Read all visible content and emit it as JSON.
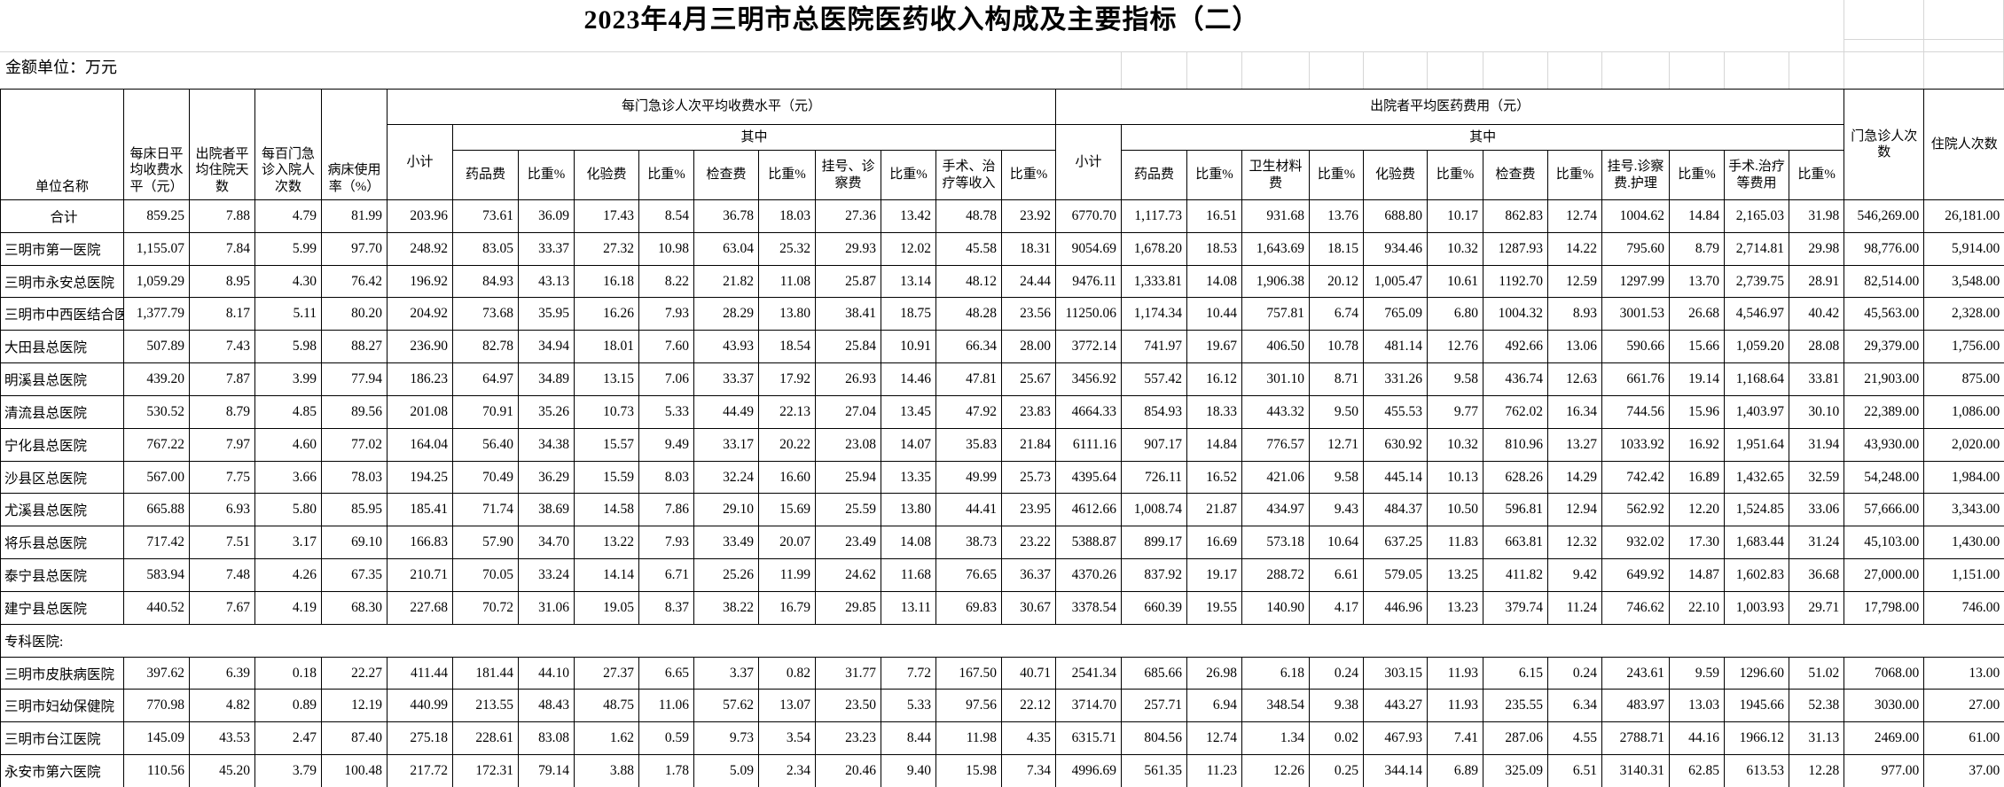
{
  "title": "2023年4月三明市总医院医药收入构成及主要指标（二）",
  "unit_note": "金额单位：万元",
  "header": {
    "left": [
      "单位名称",
      "每床日平均收费水平（元）",
      "出院者平均住院天数",
      "每百门急诊入院人次数",
      "病床使用率（%）"
    ],
    "subtotal": "小计",
    "among": "其中",
    "group1": {
      "title": "每门急诊人次平均收费水平（元）",
      "sub": [
        "药品费",
        "比重%",
        "化验费",
        "比重%",
        "检查费",
        "比重%",
        "挂号、诊察费",
        "比重%",
        "手术、治疗等收入",
        "比重%"
      ]
    },
    "group2": {
      "title": "出院者平均医药费用（元）",
      "sub": [
        "药品费",
        "比重%",
        "卫生材料费",
        "比重%",
        "化验费",
        "比重%",
        "检查费",
        "比重%",
        "挂号.诊察费.护理",
        "比重%",
        "手术.治疗等费用",
        "比重%"
      ]
    },
    "right": [
      "门急诊人次数",
      "住院人次数"
    ]
  },
  "rows": [
    {
      "name": "合计",
      "center": true,
      "values": [
        "859.25",
        "7.88",
        "4.79",
        "81.99",
        "203.96",
        "73.61",
        "36.09",
        "17.43",
        "8.54",
        "36.78",
        "18.03",
        "27.36",
        "13.42",
        "48.78",
        "23.92",
        "6770.70",
        "1,117.73",
        "16.51",
        "931.68",
        "13.76",
        "688.80",
        "10.17",
        "862.83",
        "12.74",
        "1004.62",
        "14.84",
        "2,165.03",
        "31.98",
        "546,269.00",
        "26,181.00"
      ]
    },
    {
      "name": "三明市第一医院",
      "values": [
        "1,155.07",
        "7.84",
        "5.99",
        "97.70",
        "248.92",
        "83.05",
        "33.37",
        "27.32",
        "10.98",
        "63.04",
        "25.32",
        "29.93",
        "12.02",
        "45.58",
        "18.31",
        "9054.69",
        "1,678.20",
        "18.53",
        "1,643.69",
        "18.15",
        "934.46",
        "10.32",
        "1287.93",
        "14.22",
        "795.60",
        "8.79",
        "2,714.81",
        "29.98",
        "98,776.00",
        "5,914.00"
      ]
    },
    {
      "name": "三明市永安总医院",
      "values": [
        "1,059.29",
        "8.95",
        "4.30",
        "76.42",
        "196.92",
        "84.93",
        "43.13",
        "16.18",
        "8.22",
        "21.82",
        "11.08",
        "25.87",
        "13.14",
        "48.12",
        "24.44",
        "9476.11",
        "1,333.81",
        "14.08",
        "1,906.38",
        "20.12",
        "1,005.47",
        "10.61",
        "1192.70",
        "12.59",
        "1297.99",
        "13.70",
        "2,739.75",
        "28.91",
        "82,514.00",
        "3,548.00"
      ]
    },
    {
      "name": "三明市中西医结合医院",
      "values": [
        "1,377.79",
        "8.17",
        "5.11",
        "80.20",
        "204.92",
        "73.68",
        "35.95",
        "16.26",
        "7.93",
        "28.29",
        "13.80",
        "38.41",
        "18.75",
        "48.28",
        "23.56",
        "11250.06",
        "1,174.34",
        "10.44",
        "757.81",
        "6.74",
        "765.09",
        "6.80",
        "1004.32",
        "8.93",
        "3001.53",
        "26.68",
        "4,546.97",
        "40.42",
        "45,563.00",
        "2,328.00"
      ]
    },
    {
      "name": "大田县总医院",
      "values": [
        "507.89",
        "7.43",
        "5.98",
        "88.27",
        "236.90",
        "82.78",
        "34.94",
        "18.01",
        "7.60",
        "43.93",
        "18.54",
        "25.84",
        "10.91",
        "66.34",
        "28.00",
        "3772.14",
        "741.97",
        "19.67",
        "406.50",
        "10.78",
        "481.14",
        "12.76",
        "492.66",
        "13.06",
        "590.66",
        "15.66",
        "1,059.20",
        "28.08",
        "29,379.00",
        "1,756.00"
      ]
    },
    {
      "name": "明溪县总医院",
      "values": [
        "439.20",
        "7.87",
        "3.99",
        "77.94",
        "186.23",
        "64.97",
        "34.89",
        "13.15",
        "7.06",
        "33.37",
        "17.92",
        "26.93",
        "14.46",
        "47.81",
        "25.67",
        "3456.92",
        "557.42",
        "16.12",
        "301.10",
        "8.71",
        "331.26",
        "9.58",
        "436.74",
        "12.63",
        "661.76",
        "19.14",
        "1,168.64",
        "33.81",
        "21,903.00",
        "875.00"
      ]
    },
    {
      "name": "清流县总医院",
      "values": [
        "530.52",
        "8.79",
        "4.85",
        "89.56",
        "201.08",
        "70.91",
        "35.26",
        "10.73",
        "5.33",
        "44.49",
        "22.13",
        "27.04",
        "13.45",
        "47.92",
        "23.83",
        "4664.33",
        "854.93",
        "18.33",
        "443.32",
        "9.50",
        "455.53",
        "9.77",
        "762.02",
        "16.34",
        "744.56",
        "15.96",
        "1,403.97",
        "30.10",
        "22,389.00",
        "1,086.00"
      ]
    },
    {
      "name": "宁化县总医院",
      "values": [
        "767.22",
        "7.97",
        "4.60",
        "77.02",
        "164.04",
        "56.40",
        "34.38",
        "15.57",
        "9.49",
        "33.17",
        "20.22",
        "23.08",
        "14.07",
        "35.83",
        "21.84",
        "6111.16",
        "907.17",
        "14.84",
        "776.57",
        "12.71",
        "630.92",
        "10.32",
        "810.96",
        "13.27",
        "1033.92",
        "16.92",
        "1,951.64",
        "31.94",
        "43,930.00",
        "2,020.00"
      ]
    },
    {
      "name": "沙县区总医院",
      "values": [
        "567.00",
        "7.75",
        "3.66",
        "78.03",
        "194.25",
        "70.49",
        "36.29",
        "15.59",
        "8.03",
        "32.24",
        "16.60",
        "25.94",
        "13.35",
        "49.99",
        "25.73",
        "4395.64",
        "726.11",
        "16.52",
        "421.06",
        "9.58",
        "445.14",
        "10.13",
        "628.26",
        "14.29",
        "742.42",
        "16.89",
        "1,432.65",
        "32.59",
        "54,248.00",
        "1,984.00"
      ]
    },
    {
      "name": "尤溪县总医院",
      "values": [
        "665.88",
        "6.93",
        "5.80",
        "85.95",
        "185.41",
        "71.74",
        "38.69",
        "14.58",
        "7.86",
        "29.10",
        "15.69",
        "25.59",
        "13.80",
        "44.41",
        "23.95",
        "4612.66",
        "1,008.74",
        "21.87",
        "434.97",
        "9.43",
        "484.37",
        "10.50",
        "596.81",
        "12.94",
        "562.92",
        "12.20",
        "1,524.85",
        "33.06",
        "57,666.00",
        "3,343.00"
      ]
    },
    {
      "name": "将乐县总医院",
      "values": [
        "717.42",
        "7.51",
        "3.17",
        "69.10",
        "166.83",
        "57.90",
        "34.70",
        "13.22",
        "7.93",
        "33.49",
        "20.07",
        "23.49",
        "14.08",
        "38.73",
        "23.22",
        "5388.87",
        "899.17",
        "16.69",
        "573.18",
        "10.64",
        "637.25",
        "11.83",
        "663.81",
        "12.32",
        "932.02",
        "17.30",
        "1,683.44",
        "31.24",
        "45,103.00",
        "1,430.00"
      ]
    },
    {
      "name": "泰宁县总医院",
      "values": [
        "583.94",
        "7.48",
        "4.26",
        "67.35",
        "210.71",
        "70.05",
        "33.24",
        "14.14",
        "6.71",
        "25.26",
        "11.99",
        "24.62",
        "11.68",
        "76.65",
        "36.37",
        "4370.26",
        "837.92",
        "19.17",
        "288.72",
        "6.61",
        "579.05",
        "13.25",
        "411.82",
        "9.42",
        "649.92",
        "14.87",
        "1,602.83",
        "36.68",
        "27,000.00",
        "1,151.00"
      ]
    },
    {
      "name": "建宁县总医院",
      "values": [
        "440.52",
        "7.67",
        "4.19",
        "68.30",
        "227.68",
        "70.72",
        "31.06",
        "19.05",
        "8.37",
        "38.22",
        "16.79",
        "29.85",
        "13.11",
        "69.83",
        "30.67",
        "3378.54",
        "660.39",
        "19.55",
        "140.90",
        "4.17",
        "446.96",
        "13.23",
        "379.74",
        "11.24",
        "746.62",
        "22.10",
        "1,003.93",
        "29.71",
        "17,798.00",
        "746.00"
      ]
    },
    {
      "name": "专科医院:",
      "section": true
    },
    {
      "name": "三明市皮肤病医院",
      "values": [
        "397.62",
        "6.39",
        "0.18",
        "22.27",
        "411.44",
        "181.44",
        "44.10",
        "27.37",
        "6.65",
        "3.37",
        "0.82",
        "31.77",
        "7.72",
        "167.50",
        "40.71",
        "2541.34",
        "685.66",
        "26.98",
        "6.18",
        "0.24",
        "303.15",
        "11.93",
        "6.15",
        "0.24",
        "243.61",
        "9.59",
        "1296.60",
        "51.02",
        "7068.00",
        "13.00"
      ]
    },
    {
      "name": "三明市妇幼保健院",
      "values": [
        "770.98",
        "4.82",
        "0.89",
        "12.19",
        "440.99",
        "213.55",
        "48.43",
        "48.75",
        "11.06",
        "57.62",
        "13.07",
        "23.50",
        "5.33",
        "97.56",
        "22.12",
        "3714.70",
        "257.71",
        "6.94",
        "348.54",
        "9.38",
        "443.27",
        "11.93",
        "235.55",
        "6.34",
        "483.97",
        "13.03",
        "1945.66",
        "52.38",
        "3030.00",
        "27.00"
      ]
    },
    {
      "name": "三明市台江医院",
      "values": [
        "145.09",
        "43.53",
        "2.47",
        "87.40",
        "275.18",
        "228.61",
        "83.08",
        "1.62",
        "0.59",
        "9.73",
        "3.54",
        "23.23",
        "8.44",
        "11.98",
        "4.35",
        "6315.71",
        "804.56",
        "12.74",
        "1.34",
        "0.02",
        "467.93",
        "7.41",
        "287.06",
        "4.55",
        "2788.71",
        "44.16",
        "1966.12",
        "31.13",
        "2469.00",
        "61.00"
      ]
    },
    {
      "name": "永安市第六医院",
      "values": [
        "110.56",
        "45.20",
        "3.79",
        "100.48",
        "217.72",
        "172.31",
        "79.14",
        "3.88",
        "1.78",
        "5.09",
        "2.34",
        "20.46",
        "9.40",
        "15.98",
        "7.34",
        "4996.69",
        "561.35",
        "11.23",
        "12.26",
        "0.25",
        "344.14",
        "6.89",
        "325.09",
        "6.51",
        "3140.31",
        "62.85",
        "613.53",
        "12.28",
        "977.00",
        "37.00"
      ]
    }
  ]
}
